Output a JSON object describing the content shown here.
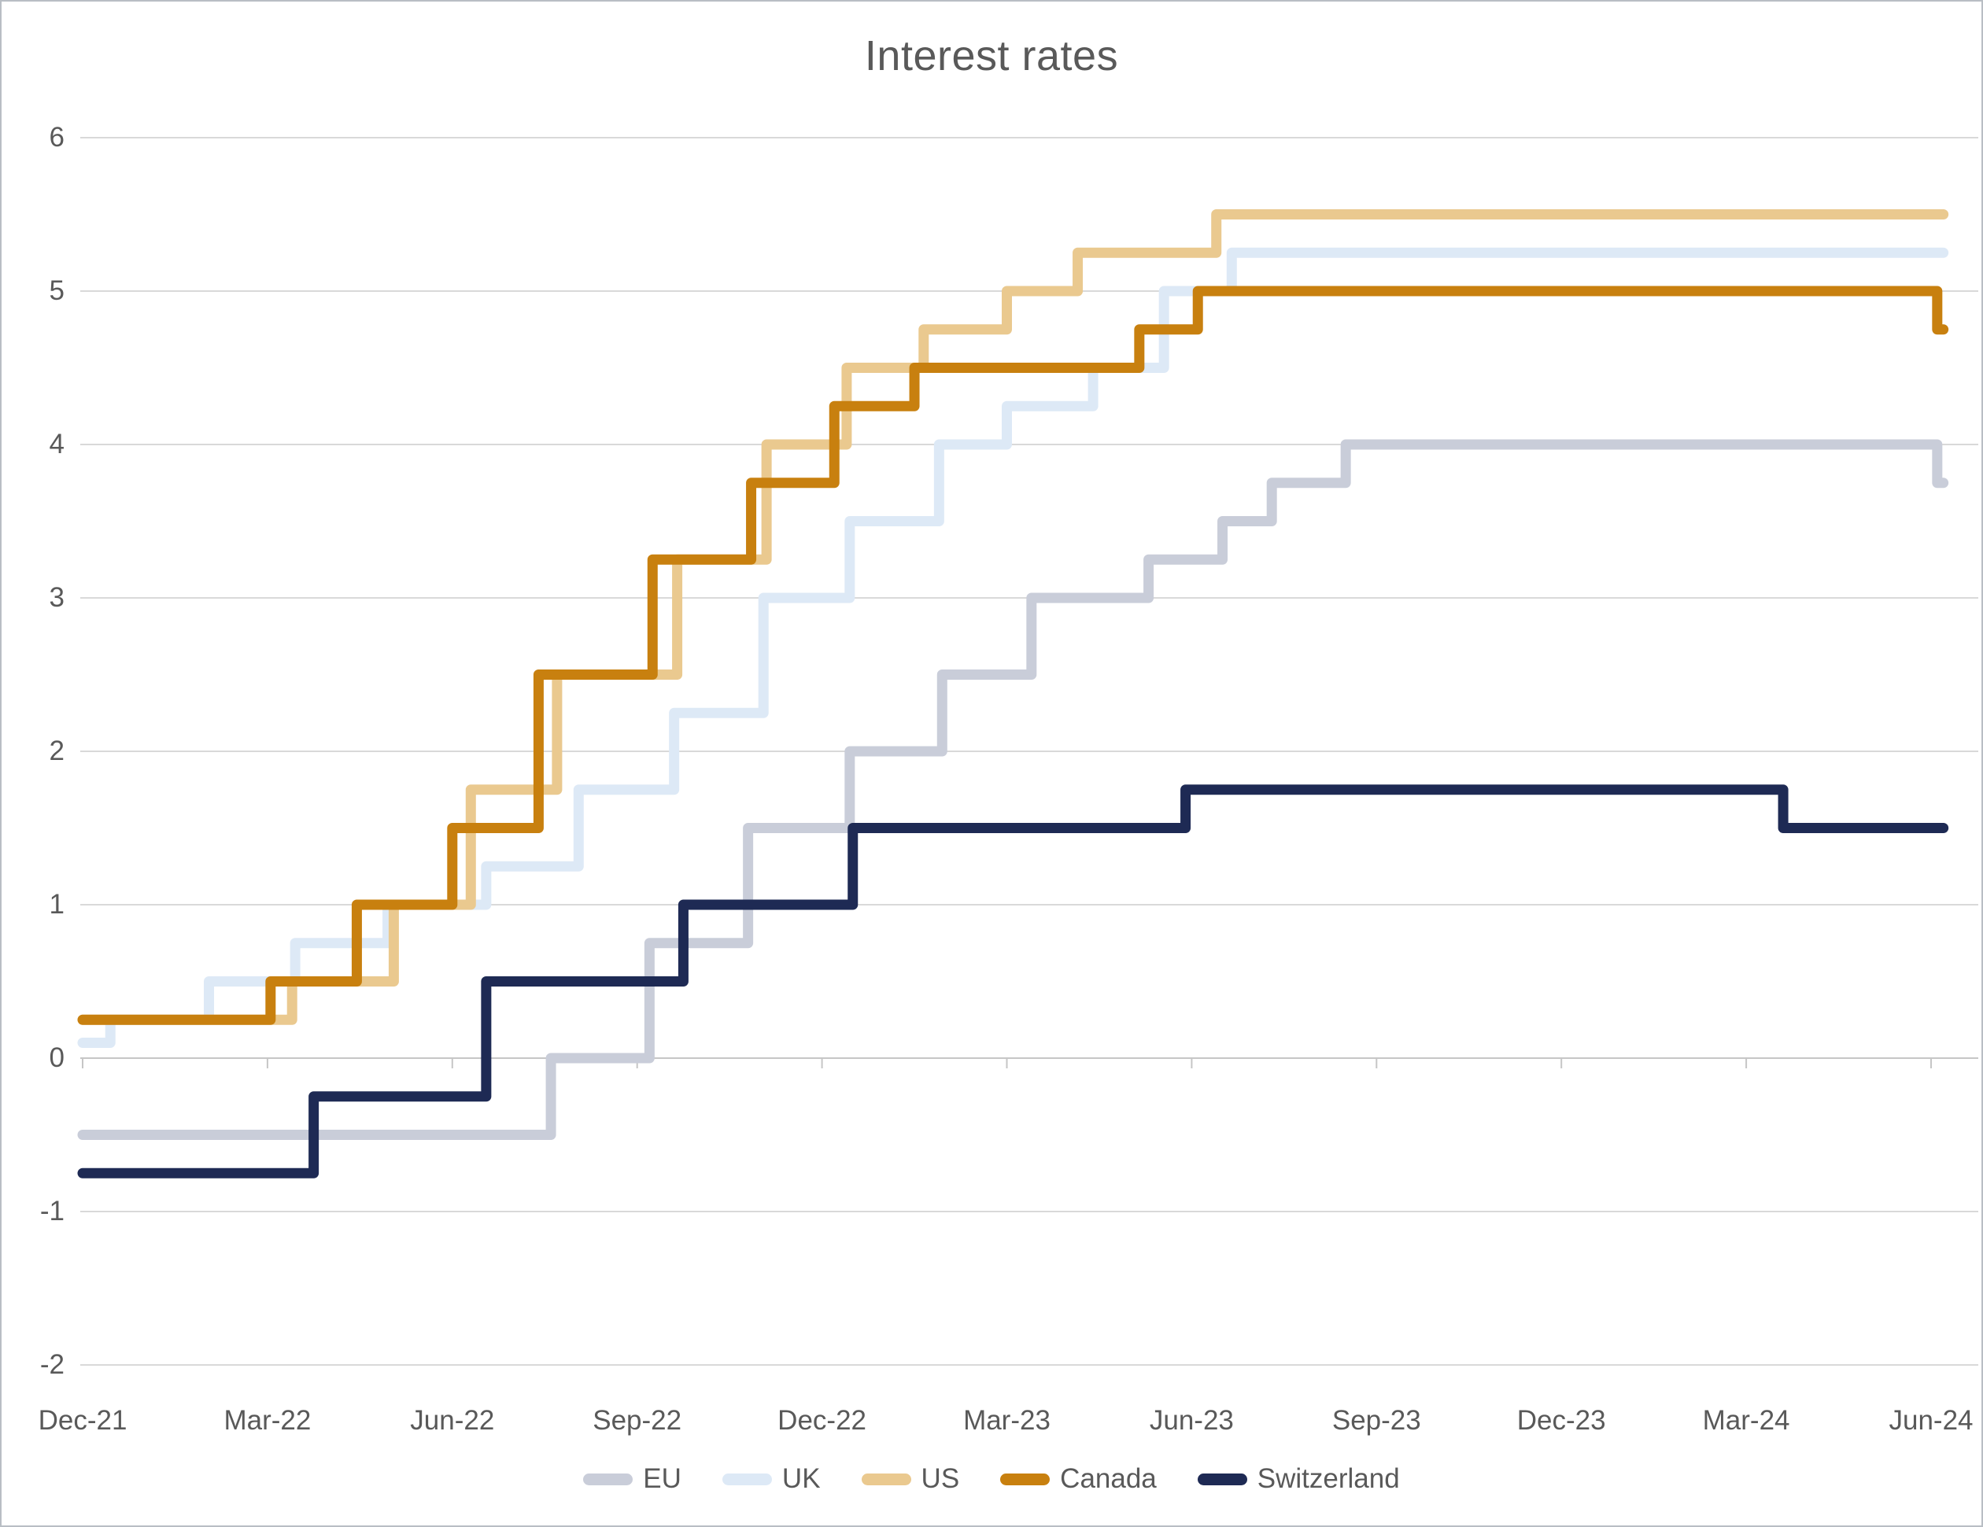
{
  "chart_data": {
    "type": "line",
    "subtype": "step",
    "title": "Interest rates",
    "grid": "horizontal",
    "legend_position": "bottom",
    "x_axis": {
      "ticks": [
        {
          "m": 0,
          "label": "Dec-21"
        },
        {
          "m": 3,
          "label": "Mar-22"
        },
        {
          "m": 6,
          "label": "Jun-22"
        },
        {
          "m": 9,
          "label": "Sep-22"
        },
        {
          "m": 12,
          "label": "Dec-22"
        },
        {
          "m": 15,
          "label": "Mar-23"
        },
        {
          "m": 18,
          "label": "Jun-23"
        },
        {
          "m": 21,
          "label": "Sep-23"
        },
        {
          "m": 24,
          "label": "Dec-23"
        },
        {
          "m": 27,
          "label": "Mar-24"
        },
        {
          "m": 30,
          "label": "Jun-24"
        }
      ],
      "x_start": 0,
      "x_end": 30.2
    },
    "y_axis": {
      "min": -2,
      "max": 6,
      "ticks": [
        {
          "v": 6,
          "label": "6"
        },
        {
          "v": 5,
          "label": "5"
        },
        {
          "v": 4,
          "label": "4"
        },
        {
          "v": 3,
          "label": "3"
        },
        {
          "v": 2,
          "label": "2"
        },
        {
          "v": 1,
          "label": "1"
        },
        {
          "v": 0,
          "label": "0"
        },
        {
          "v": -1,
          "label": "-1"
        },
        {
          "v": -2,
          "label": "-2"
        }
      ]
    },
    "series": [
      {
        "name": "EU",
        "color": "#c9cdd9",
        "steps": [
          [
            0,
            -0.5
          ],
          [
            7.6,
            0
          ],
          [
            9.2,
            0.75
          ],
          [
            10.8,
            1.5
          ],
          [
            12.45,
            2
          ],
          [
            13.95,
            2.5
          ],
          [
            15.4,
            3
          ],
          [
            17.3,
            3.25
          ],
          [
            18.5,
            3.5
          ],
          [
            19.3,
            3.75
          ],
          [
            20.5,
            4
          ],
          [
            30.1,
            3.75
          ]
        ]
      },
      {
        "name": "UK",
        "color": "#dde9f6",
        "steps": [
          [
            0,
            0.1
          ],
          [
            0.45,
            0.25
          ],
          [
            2.05,
            0.5
          ],
          [
            3.45,
            0.75
          ],
          [
            4.95,
            1
          ],
          [
            6.55,
            1.25
          ],
          [
            8.05,
            1.75
          ],
          [
            9.6,
            2.25
          ],
          [
            11.05,
            3
          ],
          [
            12.45,
            3.5
          ],
          [
            13.9,
            4
          ],
          [
            15,
            4.25
          ],
          [
            16.4,
            4.5
          ],
          [
            17.55,
            5
          ],
          [
            18.65,
            5.25
          ]
        ]
      },
      {
        "name": "US",
        "color": "#eac98f",
        "steps": [
          [
            0,
            0.25
          ],
          [
            3.4,
            0.5
          ],
          [
            5.05,
            1
          ],
          [
            6.3,
            1.75
          ],
          [
            7.7,
            2.5
          ],
          [
            9.65,
            3.25
          ],
          [
            11.1,
            4
          ],
          [
            12.4,
            4.5
          ],
          [
            13.65,
            4.75
          ],
          [
            15,
            5
          ],
          [
            16.15,
            5.25
          ],
          [
            18.4,
            5.5
          ]
        ]
      },
      {
        "name": "Canada",
        "color": "#c8800f",
        "steps": [
          [
            0,
            0.25
          ],
          [
            3.05,
            0.5
          ],
          [
            4.45,
            1
          ],
          [
            6,
            1.5
          ],
          [
            7.4,
            2.5
          ],
          [
            9.25,
            3.25
          ],
          [
            10.85,
            3.75
          ],
          [
            12.2,
            4.25
          ],
          [
            13.5,
            4.5
          ],
          [
            17.15,
            4.75
          ],
          [
            18.1,
            5
          ],
          [
            30.1,
            4.75
          ]
        ]
      },
      {
        "name": "Switzerland",
        "color": "#1e2a54",
        "steps": [
          [
            0,
            -0.75
          ],
          [
            3.75,
            -0.25
          ],
          [
            6.55,
            0.5
          ],
          [
            9.75,
            1
          ],
          [
            12.5,
            1.5
          ],
          [
            17.9,
            1.75
          ],
          [
            27.6,
            1.5
          ]
        ]
      }
    ],
    "style": {
      "line_width": 13,
      "grid_color": "#d9d9d9",
      "zero_axis_color": "#c6c6c6",
      "text_color": "#595959"
    }
  }
}
